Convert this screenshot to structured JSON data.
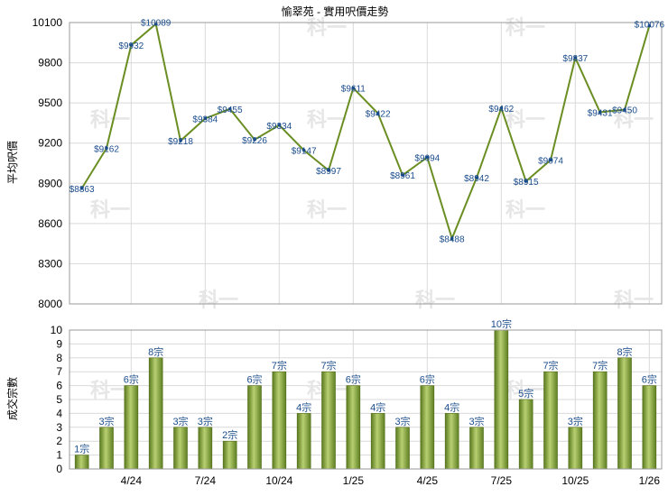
{
  "chart_data": [
    {
      "type": "line",
      "title": "愉翠苑 - 實用呎價走勢",
      "ylabel": "平均呎價",
      "ylim": [
        8000,
        10100
      ],
      "yticks": [
        8000,
        8300,
        8600,
        8900,
        9200,
        9500,
        9800,
        10100
      ],
      "grid": true,
      "color": "#6b8e23",
      "values": [
        8863,
        9162,
        9932,
        10089,
        9218,
        9384,
        9455,
        9226,
        9334,
        9147,
        8997,
        9611,
        9422,
        8961,
        9094,
        8488,
        8942,
        9462,
        8915,
        9074,
        9837,
        9431,
        9450,
        10076
      ],
      "labels": [
        "$8863",
        "$9162",
        "$9932",
        "$10089",
        "$9218",
        "$9384",
        "$9455",
        "$9226",
        "$9334",
        "$9147",
        "$8997",
        "$9611",
        "$9422",
        "$8961",
        "$9094",
        "$8488",
        "$8942",
        "$9462",
        "$8915",
        "$9074",
        "$9837",
        "$9431",
        "$9450",
        "$10076"
      ]
    },
    {
      "type": "bar",
      "ylabel": "成交宗數",
      "ylim": [
        0,
        10
      ],
      "yticks": [
        0,
        1,
        2,
        3,
        4,
        5,
        6,
        7,
        8,
        9,
        10
      ],
      "grid": true,
      "color": "#7a9a34",
      "values": [
        1,
        3,
        6,
        8,
        3,
        3,
        2,
        6,
        7,
        4,
        7,
        6,
        4,
        3,
        6,
        4,
        3,
        10,
        5,
        7,
        3,
        7,
        8,
        6
      ],
      "labels": [
        "1宗",
        "3宗",
        "6宗",
        "8宗",
        "3宗",
        "3宗",
        "2宗",
        "6宗",
        "7宗",
        "4宗",
        "7宗",
        "6宗",
        "4宗",
        "3宗",
        "6宗",
        "4宗",
        "3宗",
        "10宗",
        "5宗",
        "7宗",
        "3宗",
        "7宗",
        "8宗",
        "6宗"
      ],
      "xticks": [
        {
          "index": 2,
          "label": "4/24"
        },
        {
          "index": 5,
          "label": "7/24"
        },
        {
          "index": 8,
          "label": "10/24"
        },
        {
          "index": 11,
          "label": "1/25"
        },
        {
          "index": 14,
          "label": "4/25"
        },
        {
          "index": 17,
          "label": "7/25"
        },
        {
          "index": 20,
          "label": "10/25"
        },
        {
          "index": 23,
          "label": "1/26"
        }
      ]
    }
  ],
  "watermark": "科一"
}
